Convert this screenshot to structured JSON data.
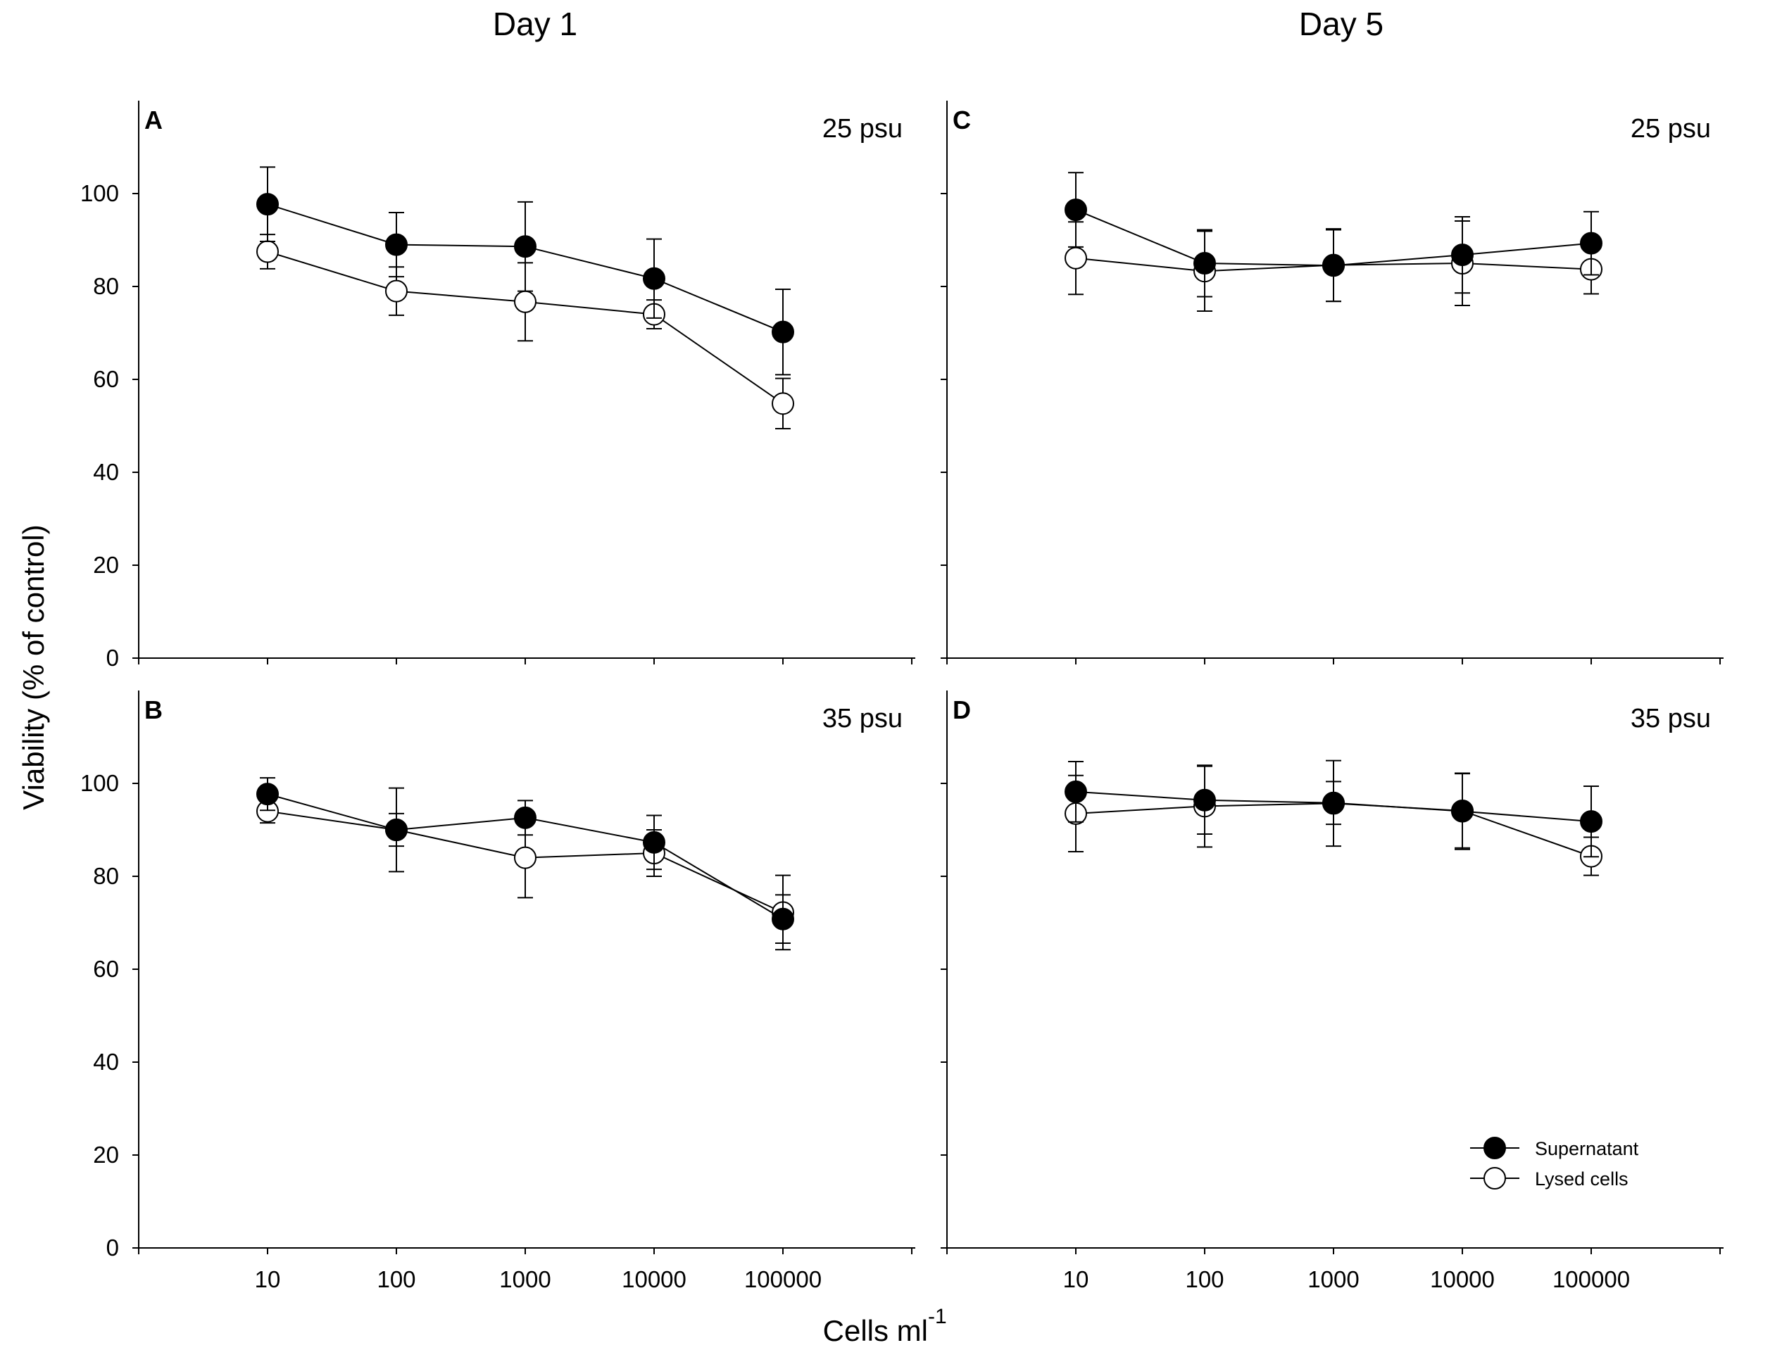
{
  "figure": {
    "column_titles": [
      "Day 1",
      "Day 5"
    ],
    "ylabel": "Viability (% of control)",
    "xlabel_main": "Cells ml",
    "xlabel_sup": "-1"
  },
  "legend": {
    "items": [
      {
        "label": "Supernatant",
        "marker": "filled-circle",
        "color": "#000000"
      },
      {
        "label": "Lysed cells",
        "marker": "open-circle",
        "color": "#000000"
      }
    ]
  },
  "chart_data": [
    {
      "type": "line",
      "panel": "A",
      "title": "Day 1",
      "annotation": "25 psu",
      "xlabel": "Cells ml-1",
      "ylabel": "Viability (% of control)",
      "x_scale": "log",
      "x": [
        10,
        100,
        1000,
        10000,
        100000
      ],
      "x_tick_labels": [],
      "y_ticks": [
        0,
        20,
        40,
        60,
        80,
        100
      ],
      "ylim": [
        0,
        120
      ],
      "series": [
        {
          "name": "Supernatant",
          "values": [
            97.7,
            89.0,
            88.6,
            81.7,
            70.2
          ],
          "error": [
            8.0,
            6.9,
            9.6,
            8.5,
            9.2
          ]
        },
        {
          "name": "Lysed cells",
          "values": [
            87.5,
            79.0,
            76.7,
            74.0,
            54.8
          ],
          "error": [
            3.7,
            5.2,
            8.4,
            3.1,
            5.4
          ]
        }
      ]
    },
    {
      "type": "line",
      "panel": "B",
      "title": "",
      "annotation": "35 psu",
      "xlabel": "Cells ml-1",
      "ylabel": "Viability (% of control)",
      "x_scale": "log",
      "x": [
        10,
        100,
        1000,
        10000,
        100000
      ],
      "x_tick_labels": [
        "10",
        "100",
        "1000",
        "10000",
        "100000"
      ],
      "y_ticks": [
        0,
        20,
        40,
        60,
        80,
        100
      ],
      "ylim": [
        0,
        120
      ],
      "series": [
        {
          "name": "Supernatant",
          "values": [
            97.7,
            90.0,
            92.6,
            87.3,
            70.8
          ],
          "error": [
            3.5,
            3.5,
            3.7,
            5.8,
            5.2
          ]
        },
        {
          "name": "Lysed cells",
          "values": [
            94.0,
            90.0,
            84.0,
            85.0,
            72.2
          ],
          "error": [
            2.5,
            9.0,
            8.6,
            5.0,
            8.0
          ]
        }
      ]
    },
    {
      "type": "line",
      "panel": "C",
      "title": "Day 5",
      "annotation": "25 psu",
      "xlabel": "Cells ml-1",
      "ylabel": "Viability (% of control)",
      "x_scale": "log",
      "x": [
        10,
        100,
        1000,
        10000,
        100000
      ],
      "x_tick_labels": [],
      "y_ticks": [],
      "ylim": [
        0,
        120
      ],
      "series": [
        {
          "name": "Supernatant",
          "values": [
            96.5,
            85.0,
            84.5,
            86.8,
            89.3
          ],
          "error": [
            8.0,
            7.2,
            7.7,
            8.2,
            6.8
          ]
        },
        {
          "name": "Lysed cells",
          "values": [
            86.1,
            83.3,
            84.6,
            85.0,
            83.7
          ],
          "error": [
            7.8,
            8.6,
            7.8,
            9.1,
            5.3
          ]
        }
      ]
    },
    {
      "type": "line",
      "panel": "D",
      "title": "",
      "annotation": "35 psu",
      "xlabel": "Cells ml-1",
      "ylabel": "Viability (% of control)",
      "x_scale": "log",
      "x": [
        10,
        100,
        1000,
        10000,
        100000
      ],
      "x_tick_labels": [
        "10",
        "100",
        "1000",
        "10000",
        "100000"
      ],
      "y_ticks": [],
      "ylim": [
        0,
        120
      ],
      "series": [
        {
          "name": "Supernatant",
          "values": [
            98.2,
            96.4,
            95.8,
            94.0,
            91.8
          ],
          "error": [
            6.5,
            7.3,
            4.6,
            8.2,
            7.6
          ]
        },
        {
          "name": "Lysed cells",
          "values": [
            93.5,
            95.1,
            95.7,
            94.1,
            84.3
          ],
          "error": [
            8.2,
            8.8,
            9.2,
            8.0,
            4.1
          ]
        }
      ]
    }
  ]
}
